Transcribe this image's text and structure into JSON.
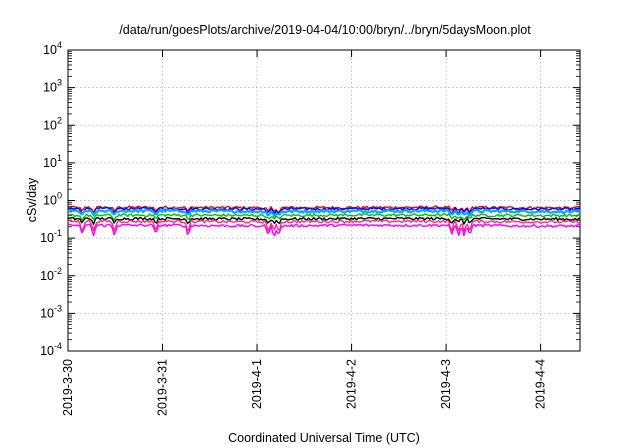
{
  "chart_data": {
    "type": "line",
    "title": "/data/run/goesPlots/archive/2019-04-04/10:00/bryn/../bryn/5daysMoon.plot",
    "xlabel": "Coordinated Universal Time (UTC)",
    "ylabel": "cSv/day",
    "y_scale": "log",
    "ylim": [
      0.0001,
      10000
    ],
    "y_tick_exponents": [
      "4",
      "3",
      "2",
      "1",
      "0",
      "-1",
      "-2",
      "-3",
      "-4"
    ],
    "y_tick_base": "10",
    "x_axis_type": "date",
    "xlim": [
      "2019-03-30T00:00",
      "2019-04-04T10:00"
    ],
    "x_ticks": [
      "2019-3-30",
      "2019-3-31",
      "2019-4-1",
      "2019-4-2",
      "2019-4-3",
      "2019-4-4"
    ],
    "x_tick_dates": [
      "2019-03-30",
      "2019-03-31",
      "2019-04-01",
      "2019-04-02",
      "2019-04-03",
      "2019-04-04"
    ],
    "grid": true,
    "legend": "none",
    "series": [
      {
        "color": "#ff0000",
        "x": [
          "2019-03-30",
          "2019-03-31",
          "2019-04-01",
          "2019-04-02",
          "2019-04-03",
          "2019-04-04",
          "2019-04-04T10:00"
        ],
        "values": [
          0.65,
          0.66,
          0.64,
          0.65,
          0.66,
          0.64,
          0.63
        ]
      },
      {
        "color": "#0000ff",
        "x": [
          "2019-03-30",
          "2019-03-31",
          "2019-04-01",
          "2019-04-02",
          "2019-04-03",
          "2019-04-04",
          "2019-04-04T10:00"
        ],
        "values": [
          0.6,
          0.61,
          0.59,
          0.6,
          0.61,
          0.59,
          0.58
        ]
      },
      {
        "color": "#00aaff",
        "x": [
          "2019-03-30",
          "2019-03-31",
          "2019-04-01",
          "2019-04-02",
          "2019-04-03",
          "2019-04-04",
          "2019-04-04T10:00"
        ],
        "values": [
          0.52,
          0.53,
          0.51,
          0.52,
          0.53,
          0.51,
          0.5
        ]
      },
      {
        "color": "#00c000",
        "x": [
          "2019-03-30",
          "2019-03-31",
          "2019-04-01",
          "2019-04-02",
          "2019-04-03",
          "2019-04-04",
          "2019-04-04T10:00"
        ],
        "values": [
          0.4,
          0.41,
          0.4,
          0.41,
          0.41,
          0.4,
          0.4
        ]
      },
      {
        "color": "#000000",
        "x": [
          "2019-03-30",
          "2019-03-31",
          "2019-04-01",
          "2019-04-02",
          "2019-04-03",
          "2019-04-04",
          "2019-04-04T10:00"
        ],
        "values": [
          0.33,
          0.33,
          0.32,
          0.33,
          0.33,
          0.32,
          0.32
        ]
      },
      {
        "color": "#ff2a7f",
        "x": [
          "2019-03-30",
          "2019-03-31",
          "2019-04-01",
          "2019-04-02",
          "2019-04-03",
          "2019-04-04",
          "2019-04-04T10:00"
        ],
        "values": [
          0.28,
          0.28,
          0.27,
          0.28,
          0.28,
          0.27,
          0.27
        ]
      },
      {
        "color": "#ff00ff",
        "x": [
          "2019-03-30",
          "2019-03-31",
          "2019-04-01",
          "2019-04-02",
          "2019-04-03",
          "2019-04-04",
          "2019-04-04T10:00"
        ],
        "values": [
          0.22,
          0.22,
          0.21,
          0.22,
          0.22,
          0.21,
          0.21
        ]
      }
    ]
  }
}
